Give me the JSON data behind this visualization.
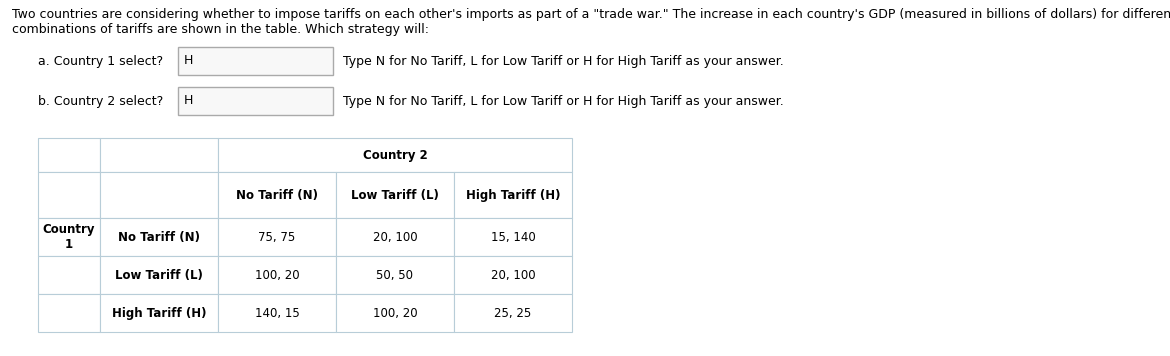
{
  "title_text": "Two countries are considering whether to impose tariffs on each other's imports as part of a \"trade war.\" The increase in each country's GDP (measured in billions of dollars) for different\ncombinations of tariffs are shown in the table. Which strategy will:",
  "question_a": "a. Country 1 select?",
  "answer_a": "H",
  "hint_a": "Type N for No Tariff, L for Low Tariff or H for High Tariff as your answer.",
  "question_b": "b. Country 2 select?",
  "answer_b": "H",
  "hint_b": "Type N for No Tariff, L for Low Tariff or H for High Tariff as your answer.",
  "col_header_label": "Country 2",
  "row_header_label": "Country\n1",
  "col_headers": [
    "No Tariff (N)",
    "Low Tariff (L)",
    "High Tariff (H)"
  ],
  "row_headers": [
    "No Tariff (N)",
    "Low Tariff (L)",
    "High Tariff (H)"
  ],
  "table_data": [
    [
      "75, 75",
      "20, 100",
      "15, 140"
    ],
    [
      "100, 20",
      "50, 50",
      "20, 100"
    ],
    [
      "140, 15",
      "100, 20",
      "25, 25"
    ]
  ],
  "bg_color": "#ffffff",
  "text_color": "#000000",
  "table_border_color": "#b8cdd8",
  "title_fontsize": 9.0,
  "question_fontsize": 9.0,
  "table_fontsize": 8.5
}
